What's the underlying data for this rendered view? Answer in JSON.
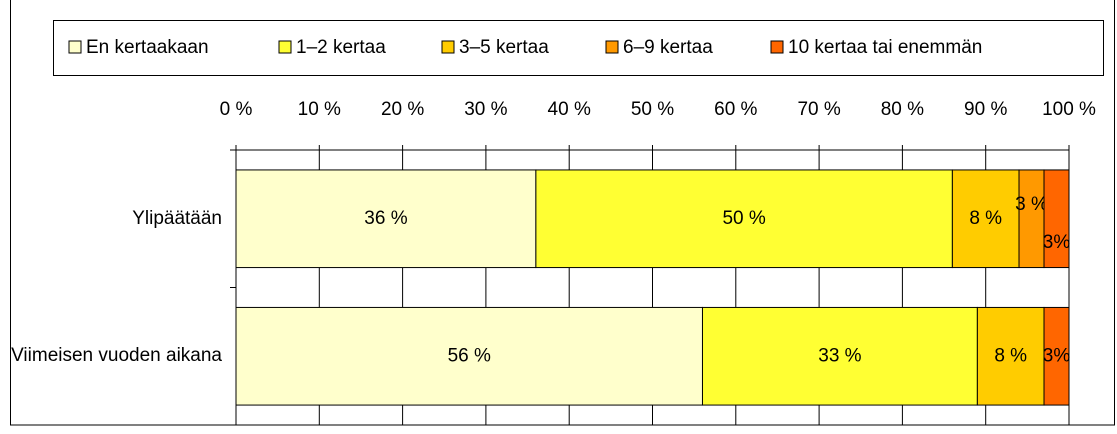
{
  "chart_data": {
    "type": "stacked-bar-horizontal",
    "categories": [
      "Ylipäätään",
      "Viimeisen vuoden aikana"
    ],
    "series": [
      {
        "name": "En kertaakaan",
        "color": "#ffffcc",
        "values": [
          36,
          56
        ],
        "value_labels": [
          "36 %",
          "56 %"
        ]
      },
      {
        "name": "1–2 kertaa",
        "color": "#ffff33",
        "values": [
          50,
          33
        ],
        "value_labels": [
          "50 %",
          "33 %"
        ]
      },
      {
        "name": "3–5 kertaa",
        "color": "#ffcc00",
        "values": [
          8,
          8
        ],
        "value_labels": [
          "8 %",
          "8 %"
        ]
      },
      {
        "name": "6–9 kertaa",
        "color": "#ff9900",
        "values": [
          3,
          0
        ],
        "value_labels": [
          "3 %",
          null
        ]
      },
      {
        "name": "10 kertaa tai enemmän",
        "color": "#ff6600",
        "values": [
          3,
          3
        ],
        "value_labels": [
          "3%",
          "3%"
        ]
      }
    ],
    "xlim": [
      0,
      100
    ],
    "xticks": [
      {
        "value": 0,
        "label": "0 %"
      },
      {
        "value": 10,
        "label": "10 %"
      },
      {
        "value": 20,
        "label": "20 %"
      },
      {
        "value": 30,
        "label": "30 %"
      },
      {
        "value": 40,
        "label": "40 %"
      },
      {
        "value": 50,
        "label": "50 %"
      },
      {
        "value": 60,
        "label": "60 %"
      },
      {
        "value": 70,
        "label": "70 %"
      },
      {
        "value": 80,
        "label": "80 %"
      },
      {
        "value": 90,
        "label": "90 %"
      },
      {
        "value": 100,
        "label": "100 %"
      }
    ],
    "grid": true,
    "legend": "top"
  }
}
